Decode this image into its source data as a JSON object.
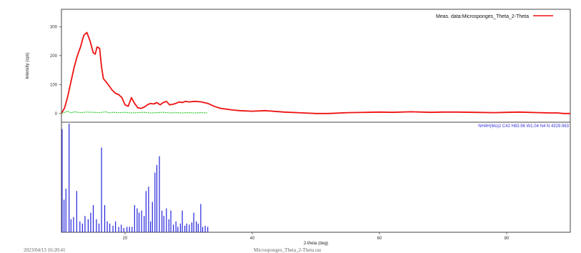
{
  "chart_data": {
    "type": "line",
    "title": "",
    "legend": {
      "position": "top-right",
      "label": "Meas. data:Microsponges_Theta_2-Theta",
      "color": "#ee1111"
    },
    "ylabel": "Intensity (cps)",
    "xlabel": "2-theta (deg)",
    "xlim": [
      10,
      90
    ],
    "ylim": [
      -30,
      360
    ],
    "x_ticks": [
      "20",
      "40",
      "60",
      "80"
    ],
    "y_ticks": [
      0,
      100,
      200,
      300
    ],
    "y_tick_labels": [
      "0",
      "100",
      "200",
      "300"
    ],
    "grid": false,
    "series": [
      {
        "name": "Meas. data:Microsponges_Theta_2-Theta",
        "color": "#ee1111",
        "x": [
          10.0,
          10.5,
          11.0,
          11.5,
          12.0,
          12.5,
          13.0,
          13.5,
          14.0,
          14.5,
          15.0,
          15.3,
          15.6,
          16.0,
          16.3,
          16.6,
          17.0,
          17.5,
          18.0,
          18.5,
          19.0,
          19.5,
          20.0,
          20.5,
          21.0,
          21.5,
          22.0,
          22.5,
          23.0,
          23.5,
          24.0,
          24.5,
          25.0,
          25.5,
          26.0,
          26.5,
          27.0,
          27.5,
          28.0,
          28.5,
          29.0,
          29.5,
          30.0,
          31.0,
          32.0,
          33.0,
          34.0,
          35.0,
          36.0,
          37.0,
          38.0,
          40.0,
          42.0,
          45.0,
          48.0,
          50.0,
          52.0,
          55.0,
          58.0,
          60.0,
          62.0,
          65.0,
          68.0,
          70.0,
          72.0,
          75.0,
          78.0,
          80.0,
          82.0,
          85.0,
          87.0,
          88.0,
          89.0,
          90.0
        ],
        "y": [
          0,
          20,
          60,
          110,
          160,
          200,
          230,
          270,
          280,
          250,
          210,
          205,
          230,
          225,
          160,
          120,
          110,
          95,
          80,
          70,
          65,
          55,
          30,
          25,
          55,
          35,
          20,
          18,
          22,
          30,
          35,
          33,
          38,
          30,
          38,
          42,
          30,
          32,
          35,
          40,
          38,
          42,
          40,
          42,
          40,
          35,
          25,
          18,
          15,
          12,
          10,
          8,
          10,
          5,
          2,
          0,
          0,
          3,
          4,
          5,
          4,
          6,
          4,
          5,
          5,
          4,
          3,
          4,
          5,
          3,
          2,
          2,
          0,
          0
        ]
      },
      {
        "name": "",
        "color": "#33cc33",
        "x": [
          10.0,
          11.0,
          11.5,
          12.0,
          13.0,
          14.0,
          15.0,
          16.0,
          17.0,
          17.5,
          18.0,
          19.0,
          20.0,
          21.0,
          22.0,
          23.0,
          24.0,
          25.0,
          26.0,
          27.0,
          28.0,
          29.0,
          30.0,
          31.0,
          32.0,
          33.0
        ],
        "y": [
          0,
          8,
          2,
          6,
          3,
          5,
          4,
          3,
          6,
          2,
          4,
          3,
          4,
          2,
          3,
          4,
          2,
          3,
          4,
          2,
          3,
          2,
          3,
          2,
          3,
          2
        ]
      }
    ],
    "reference_panel": {
      "label": "NH4H(Mo)2 C42 H83.96 W1.04 N4 N 4329.963",
      "color": "#2222dd",
      "x": [
        10.1,
        10.4,
        10.7,
        11.2,
        11.5,
        11.9,
        12.4,
        12.9,
        13.3,
        13.7,
        14.2,
        14.6,
        15.0,
        15.5,
        15.9,
        16.3,
        16.8,
        17.2,
        17.6,
        18.1,
        18.5,
        19.0,
        19.4,
        19.8,
        20.3,
        20.7,
        21.1,
        21.5,
        21.9,
        22.2,
        22.6,
        23.0,
        23.3,
        23.7,
        24.0,
        24.3,
        24.7,
        25.0,
        25.4,
        25.8,
        26.1,
        26.5,
        26.9,
        27.2,
        27.6,
        28.0,
        28.3,
        28.7,
        29.0,
        29.4,
        29.7,
        30.1,
        30.5,
        30.8,
        31.2,
        31.5,
        31.9,
        32.2,
        32.6,
        33.0
      ],
      "intensity": [
        95,
        30,
        40,
        100,
        12,
        14,
        38,
        10,
        8,
        15,
        12,
        18,
        25,
        12,
        8,
        78,
        25,
        10,
        8,
        6,
        10,
        5,
        7,
        4,
        5,
        5,
        5,
        25,
        22,
        18,
        20,
        15,
        38,
        42,
        10,
        28,
        55,
        62,
        70,
        20,
        15,
        22,
        12,
        20,
        7,
        10,
        5,
        8,
        20,
        6,
        8,
        7,
        9,
        18,
        10,
        8,
        26,
        5,
        6,
        5
      ]
    },
    "footer": {
      "left": "2023/04/13 16:20:41",
      "center": "Microsponges_Theta_2-Theta.ras"
    }
  }
}
